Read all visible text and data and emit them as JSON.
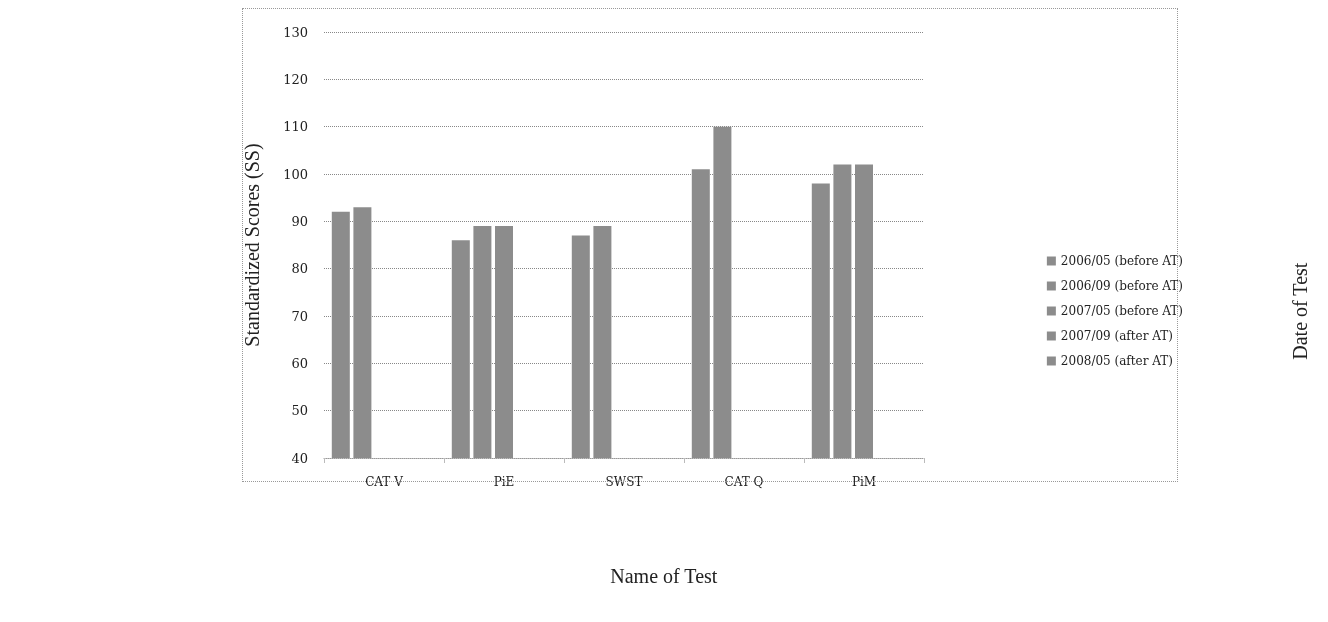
{
  "chart_data": {
    "type": "bar",
    "xlabel": "Name of Test",
    "ylabel": "Standardized Scores (SS)",
    "legend_title": "Date of Test",
    "categories": [
      "CAT V",
      "PiE",
      "SWST",
      "CAT Q",
      "PiM"
    ],
    "series": [
      {
        "name": "2006/05 (before AT)",
        "color": "#8c8c8c",
        "values": [
          92,
          86,
          87,
          101,
          98
        ]
      },
      {
        "name": "2006/09 (before AT)",
        "color": "#8c8c8c",
        "values": [
          93,
          89,
          89,
          110,
          102
        ]
      },
      {
        "name": "2007/05 (before AT)",
        "color": "#8c8c8c",
        "values": [
          null,
          89,
          null,
          null,
          102
        ]
      },
      {
        "name": "2007/09 (after AT)",
        "color": "#8c8c8c",
        "values": [
          null,
          null,
          null,
          null,
          null
        ]
      },
      {
        "name": "2008/05 (after AT)",
        "color": "#8c8c8c",
        "values": [
          null,
          null,
          null,
          null,
          null
        ]
      }
    ],
    "ylim": [
      40,
      130
    ],
    "yticks": [
      40,
      50,
      60,
      70,
      80,
      90,
      100,
      110,
      120,
      130
    ],
    "grid": "y",
    "legend": "right"
  }
}
